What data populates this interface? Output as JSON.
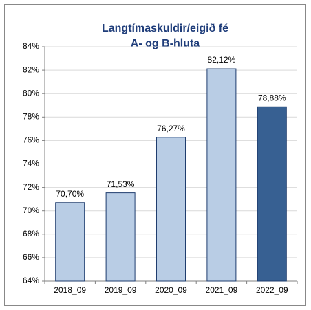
{
  "chart_data": {
    "type": "bar",
    "title": "Langtímaskuldir/eigið fé",
    "subtitle": "A- og B-hluta",
    "categories": [
      "2018_09",
      "2019_09",
      "2020_09",
      "2021_09",
      "2022_09"
    ],
    "values": [
      70.7,
      71.53,
      76.27,
      82.12,
      78.88
    ],
    "value_labels": [
      "70,70%",
      "71,53%",
      "76,27%",
      "82,12%",
      "78,88%"
    ],
    "colors": [
      "#b9cde5",
      "#b9cde5",
      "#b9cde5",
      "#b9cde5",
      "#376092"
    ],
    "ylim": [
      64,
      84
    ],
    "yticks": [
      {
        "value": 64,
        "label": "64%"
      },
      {
        "value": 66,
        "label": "66%"
      },
      {
        "value": 68,
        "label": "68%"
      },
      {
        "value": 70,
        "label": "70%"
      },
      {
        "value": 72,
        "label": "72%"
      },
      {
        "value": 74,
        "label": "74%"
      },
      {
        "value": 76,
        "label": "76%"
      },
      {
        "value": 78,
        "label": "78%"
      },
      {
        "value": 80,
        "label": "80%"
      },
      {
        "value": 82,
        "label": "82%"
      },
      {
        "value": 84,
        "label": "84%"
      }
    ],
    "grid": true
  }
}
